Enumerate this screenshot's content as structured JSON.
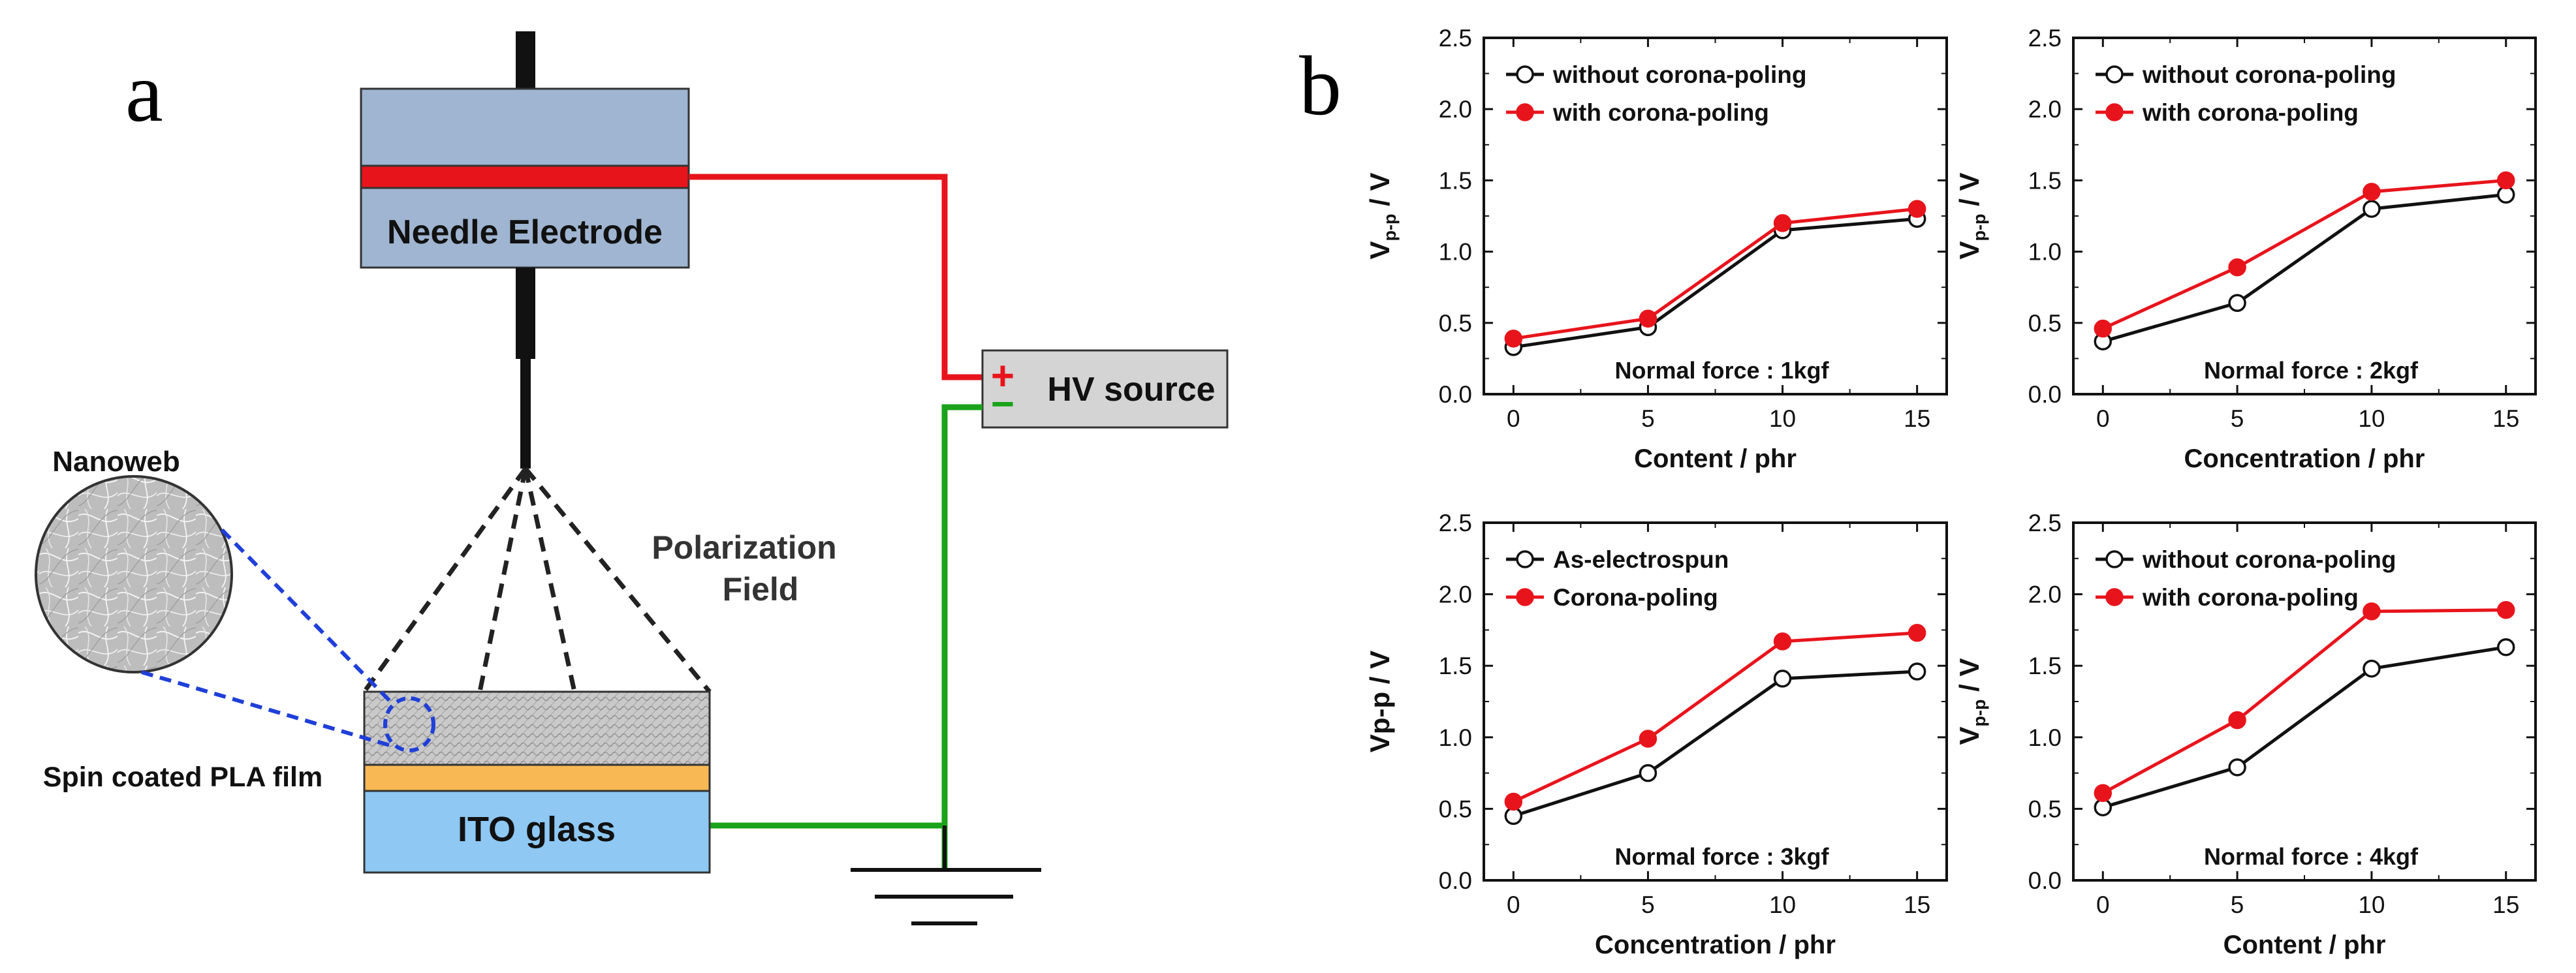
{
  "colors": {
    "red": "#e8141c",
    "green": "#1aa31a",
    "black": "#111111",
    "electrode_fill": "#9fb5d1",
    "ito_fill": "#8ec8f3",
    "pla_fill": "#f8b955",
    "hv_fill": "#d4d4d4",
    "dash_blue": "#1f3fd8",
    "axis": "#111111",
    "open_marker_fill": "#ffffff"
  },
  "diagram": {
    "panel_label": "a",
    "needle_electrode_label": "Needle Electrode",
    "hv_source_label": "HV source",
    "plus_sign": "+",
    "minus_sign": "−",
    "nanoweb_label": "Nanoweb",
    "polarization_label_line1": "Polarization",
    "polarization_label_line2": "Field",
    "pla_film_label": "Spin coated PLA film",
    "ito_glass_label": "ITO glass"
  },
  "charts_panel_label": "b",
  "chart_data": [
    {
      "type": "line",
      "categories": [
        "0",
        "5",
        "10",
        "15"
      ],
      "x": [
        0,
        5,
        10,
        15
      ],
      "ylabel": "Vp-p / V",
      "ylabel_main": "V",
      "ylabel_sub": "p-p",
      "ylabel_tail": " / V",
      "ylabel_style": "subscript",
      "xlabel": "Content / phr",
      "annotation": "Normal force : 1kgf",
      "ylim": [
        0,
        2.5
      ],
      "yticks": [
        "0.0",
        "0.5",
        "1.0",
        "1.5",
        "2.0",
        "2.5"
      ],
      "legend_position": "top-left",
      "series": [
        {
          "name": "without corona-poling",
          "marker": "open-circle",
          "color": "#111111",
          "values": [
            0.33,
            0.47,
            1.15,
            1.23
          ]
        },
        {
          "name": "with corona-poling",
          "marker": "filled-circle",
          "color": "#e8141c",
          "values": [
            0.39,
            0.53,
            1.2,
            1.3
          ]
        }
      ]
    },
    {
      "type": "line",
      "categories": [
        "0",
        "5",
        "10",
        "15"
      ],
      "x": [
        0,
        5,
        10,
        15
      ],
      "ylabel": "Vp-p / V",
      "ylabel_main": "V",
      "ylabel_sub": "p-p",
      "ylabel_tail": " / V",
      "ylabel_style": "subscript",
      "xlabel": "Concentration / phr",
      "annotation": "Normal force : 2kgf",
      "ylim": [
        0,
        2.5
      ],
      "yticks": [
        "0.0",
        "0.5",
        "1.0",
        "1.5",
        "2.0",
        "2.5"
      ],
      "legend_position": "top-left",
      "series": [
        {
          "name": "without corona-poling",
          "marker": "open-circle",
          "color": "#111111",
          "values": [
            0.37,
            0.64,
            1.3,
            1.4
          ]
        },
        {
          "name": "with corona-poling",
          "marker": "filled-circle",
          "color": "#e8141c",
          "values": [
            0.46,
            0.89,
            1.42,
            1.5
          ]
        }
      ]
    },
    {
      "type": "line",
      "categories": [
        "0",
        "5",
        "10",
        "15"
      ],
      "x": [
        0,
        5,
        10,
        15
      ],
      "ylabel": "Vp-p / V",
      "ylabel_main": "Vp-p",
      "ylabel_sub": "",
      "ylabel_tail": " / V",
      "ylabel_style": "plain",
      "xlabel": "Concentration / phr",
      "annotation": "Normal force : 3kgf",
      "ylim": [
        0,
        2.5
      ],
      "yticks": [
        "0.0",
        "0.5",
        "1.0",
        "1.5",
        "2.0",
        "2.5"
      ],
      "legend_position": "top-left",
      "series": [
        {
          "name": "As-electrospun",
          "marker": "open-circle",
          "color": "#111111",
          "values": [
            0.45,
            0.75,
            1.41,
            1.46
          ]
        },
        {
          "name": "Corona-poling",
          "marker": "filled-circle",
          "color": "#e8141c",
          "values": [
            0.55,
            0.99,
            1.67,
            1.73
          ]
        }
      ]
    },
    {
      "type": "line",
      "categories": [
        "0",
        "5",
        "10",
        "15"
      ],
      "x": [
        0,
        5,
        10,
        15
      ],
      "ylabel": "Vp-p / V",
      "ylabel_main": "V",
      "ylabel_sub": "p-p",
      "ylabel_tail": " / V",
      "ylabel_style": "subscript",
      "xlabel": "Content / phr",
      "annotation": "Normal force : 4kgf",
      "ylim": [
        0,
        2.5
      ],
      "yticks": [
        "0.0",
        "0.5",
        "1.0",
        "1.5",
        "2.0",
        "2.5"
      ],
      "legend_position": "top-left",
      "series": [
        {
          "name": "without corona-poling",
          "marker": "open-circle",
          "color": "#111111",
          "values": [
            0.51,
            0.79,
            1.48,
            1.63
          ]
        },
        {
          "name": "with corona-poling",
          "marker": "filled-circle",
          "color": "#e8141c",
          "values": [
            0.61,
            1.12,
            1.88,
            1.89
          ]
        }
      ]
    }
  ]
}
